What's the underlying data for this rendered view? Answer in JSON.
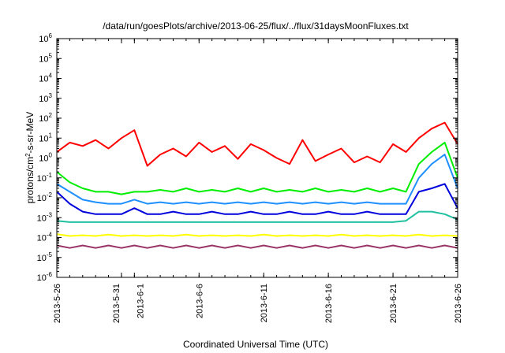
{
  "chart_data": {
    "type": "line",
    "title": "/data/run/goesPlots/archive/2013-06-25/flux/../flux/31daysMoonFluxes.txt",
    "xlabel": "Coordinated Universal Time (UTC)",
    "ylabel": "protons/cm2-s-sr-MeV",
    "ylabel_parts": [
      "protons/cm",
      "2",
      "-s-sr-MeV"
    ],
    "y_scale": "log",
    "ylim": [
      1e-06,
      1000000.0
    ],
    "yticks": [
      {
        "base": "10",
        "exp": "-6",
        "value": 1e-06
      },
      {
        "base": "10",
        "exp": "-5",
        "value": 1e-05
      },
      {
        "base": "10",
        "exp": "-4",
        "value": 0.0001
      },
      {
        "base": "10",
        "exp": "-3",
        "value": 0.001
      },
      {
        "base": "10",
        "exp": "-2",
        "value": 0.01
      },
      {
        "base": "10",
        "exp": "-1",
        "value": 0.1
      },
      {
        "base": "10",
        "exp": "0",
        "value": 1
      },
      {
        "base": "10",
        "exp": "1",
        "value": 10
      },
      {
        "base": "10",
        "exp": "2",
        "value": 100
      },
      {
        "base": "10",
        "exp": "3",
        "value": 1000
      },
      {
        "base": "10",
        "exp": "4",
        "value": 10000
      },
      {
        "base": "10",
        "exp": "5",
        "value": 100000
      },
      {
        "base": "10",
        "exp": "6",
        "value": 1000000
      }
    ],
    "xlim": [
      "2013-05-26",
      "2013-06-26"
    ],
    "xticks": [
      {
        "label": "2013-5-26",
        "date": "2013-05-26"
      },
      {
        "label": "2013-5-31",
        "date": "2013-05-31"
      },
      {
        "label": "2013-6-1",
        "date": "2013-06-01"
      },
      {
        "label": "2013-6-6",
        "date": "2013-06-06"
      },
      {
        "label": "2013-6-11",
        "date": "2013-06-11"
      },
      {
        "label": "2013-6-16",
        "date": "2013-06-16"
      },
      {
        "label": "2013-6-21",
        "date": "2013-06-21"
      },
      {
        "label": "2013-6-26",
        "date": "2013-06-26"
      }
    ],
    "grid": false,
    "series": [
      {
        "color": "#ff0000",
        "x": [
          "2013-05-26",
          "2013-05-27",
          "2013-05-28",
          "2013-05-29",
          "2013-05-30",
          "2013-05-31",
          "2013-06-01",
          "2013-06-02",
          "2013-06-03",
          "2013-06-04",
          "2013-06-05",
          "2013-06-06",
          "2013-06-07",
          "2013-06-08",
          "2013-06-09",
          "2013-06-10",
          "2013-06-11",
          "2013-06-12",
          "2013-06-13",
          "2013-06-14",
          "2013-06-15",
          "2013-06-16",
          "2013-06-17",
          "2013-06-18",
          "2013-06-19",
          "2013-06-20",
          "2013-06-21",
          "2013-06-22",
          "2013-06-23",
          "2013-06-24",
          "2013-06-25",
          "2013-06-26"
        ],
        "y": [
          2,
          6,
          4,
          8,
          3,
          10,
          25,
          0.4,
          1.5,
          3,
          1.2,
          6,
          2,
          4,
          0.9,
          5,
          2.5,
          1,
          0.5,
          8,
          0.7,
          1.5,
          3,
          0.6,
          1.2,
          0.6,
          5,
          2,
          10,
          30,
          60,
          5
        ]
      },
      {
        "color": "#00ee00",
        "x": [
          "2013-05-26",
          "2013-05-27",
          "2013-05-28",
          "2013-05-29",
          "2013-05-30",
          "2013-05-31",
          "2013-06-01",
          "2013-06-02",
          "2013-06-03",
          "2013-06-04",
          "2013-06-05",
          "2013-06-06",
          "2013-06-07",
          "2013-06-08",
          "2013-06-09",
          "2013-06-10",
          "2013-06-11",
          "2013-06-12",
          "2013-06-13",
          "2013-06-14",
          "2013-06-15",
          "2013-06-16",
          "2013-06-17",
          "2013-06-18",
          "2013-06-19",
          "2013-06-20",
          "2013-06-21",
          "2013-06-22",
          "2013-06-23",
          "2013-06-24",
          "2013-06-25",
          "2013-06-26"
        ],
        "y": [
          0.2,
          0.06,
          0.03,
          0.02,
          0.02,
          0.015,
          0.02,
          0.02,
          0.025,
          0.02,
          0.03,
          0.02,
          0.025,
          0.02,
          0.03,
          0.02,
          0.03,
          0.02,
          0.025,
          0.02,
          0.03,
          0.02,
          0.025,
          0.02,
          0.03,
          0.02,
          0.03,
          0.02,
          0.5,
          2,
          6,
          0.1
        ]
      },
      {
        "color": "#1e90ff",
        "x": [
          "2013-05-26",
          "2013-05-27",
          "2013-05-28",
          "2013-05-29",
          "2013-05-30",
          "2013-05-31",
          "2013-06-01",
          "2013-06-02",
          "2013-06-03",
          "2013-06-04",
          "2013-06-05",
          "2013-06-06",
          "2013-06-07",
          "2013-06-08",
          "2013-06-09",
          "2013-06-10",
          "2013-06-11",
          "2013-06-12",
          "2013-06-13",
          "2013-06-14",
          "2013-06-15",
          "2013-06-16",
          "2013-06-17",
          "2013-06-18",
          "2013-06-19",
          "2013-06-20",
          "2013-06-21",
          "2013-06-22",
          "2013-06-23",
          "2013-06-24",
          "2013-06-25",
          "2013-06-26"
        ],
        "y": [
          0.05,
          0.02,
          0.008,
          0.006,
          0.005,
          0.005,
          0.008,
          0.005,
          0.006,
          0.005,
          0.006,
          0.005,
          0.006,
          0.005,
          0.006,
          0.005,
          0.006,
          0.005,
          0.006,
          0.005,
          0.006,
          0.005,
          0.006,
          0.005,
          0.006,
          0.005,
          0.005,
          0.005,
          0.1,
          0.5,
          1.5,
          0.03
        ]
      },
      {
        "color": "#0000dd",
        "x": [
          "2013-05-26",
          "2013-05-27",
          "2013-05-28",
          "2013-05-29",
          "2013-05-30",
          "2013-05-31",
          "2013-06-01",
          "2013-06-02",
          "2013-06-03",
          "2013-06-04",
          "2013-06-05",
          "2013-06-06",
          "2013-06-07",
          "2013-06-08",
          "2013-06-09",
          "2013-06-10",
          "2013-06-11",
          "2013-06-12",
          "2013-06-13",
          "2013-06-14",
          "2013-06-15",
          "2013-06-16",
          "2013-06-17",
          "2013-06-18",
          "2013-06-19",
          "2013-06-20",
          "2013-06-21",
          "2013-06-22",
          "2013-06-23",
          "2013-06-24",
          "2013-06-25",
          "2013-06-26"
        ],
        "y": [
          0.02,
          0.005,
          0.002,
          0.0015,
          0.0015,
          0.0015,
          0.003,
          0.0015,
          0.0015,
          0.002,
          0.0015,
          0.0015,
          0.002,
          0.0015,
          0.0015,
          0.002,
          0.0015,
          0.0015,
          0.002,
          0.0015,
          0.0015,
          0.002,
          0.0015,
          0.0015,
          0.002,
          0.0015,
          0.0015,
          0.0015,
          0.02,
          0.03,
          0.05,
          0.003
        ]
      },
      {
        "color": "#20c0a0",
        "x": [
          "2013-05-26",
          "2013-05-27",
          "2013-05-28",
          "2013-05-29",
          "2013-05-30",
          "2013-05-31",
          "2013-06-01",
          "2013-06-02",
          "2013-06-03",
          "2013-06-04",
          "2013-06-05",
          "2013-06-06",
          "2013-06-07",
          "2013-06-08",
          "2013-06-09",
          "2013-06-10",
          "2013-06-11",
          "2013-06-12",
          "2013-06-13",
          "2013-06-14",
          "2013-06-15",
          "2013-06-16",
          "2013-06-17",
          "2013-06-18",
          "2013-06-19",
          "2013-06-20",
          "2013-06-21",
          "2013-06-22",
          "2013-06-23",
          "2013-06-24",
          "2013-06-25",
          "2013-06-26"
        ],
        "y": [
          0.0007,
          0.0006,
          0.0006,
          0.0006,
          0.0006,
          0.0006,
          0.0006,
          0.0006,
          0.0006,
          0.0006,
          0.0006,
          0.0006,
          0.0006,
          0.0006,
          0.0006,
          0.0006,
          0.0006,
          0.0006,
          0.0006,
          0.0006,
          0.0006,
          0.0006,
          0.0006,
          0.0006,
          0.0006,
          0.0006,
          0.0006,
          0.0007,
          0.002,
          0.002,
          0.0015,
          0.0008
        ]
      },
      {
        "color": "#ffff00",
        "x": [
          "2013-05-26",
          "2013-05-27",
          "2013-05-28",
          "2013-05-29",
          "2013-05-30",
          "2013-05-31",
          "2013-06-01",
          "2013-06-02",
          "2013-06-03",
          "2013-06-04",
          "2013-06-05",
          "2013-06-06",
          "2013-06-07",
          "2013-06-08",
          "2013-06-09",
          "2013-06-10",
          "2013-06-11",
          "2013-06-12",
          "2013-06-13",
          "2013-06-14",
          "2013-06-15",
          "2013-06-16",
          "2013-06-17",
          "2013-06-18",
          "2013-06-19",
          "2013-06-20",
          "2013-06-21",
          "2013-06-22",
          "2013-06-23",
          "2013-06-24",
          "2013-06-25",
          "2013-06-26"
        ],
        "y": [
          0.00015,
          0.00012,
          0.00013,
          0.00012,
          0.00014,
          0.00012,
          0.00013,
          0.00012,
          0.00013,
          0.00012,
          0.00014,
          0.00012,
          0.00013,
          0.00012,
          0.00013,
          0.00012,
          0.00014,
          0.00012,
          0.00013,
          0.00012,
          0.00013,
          0.00012,
          0.00014,
          0.00012,
          0.00013,
          0.00012,
          0.00013,
          0.00012,
          0.00014,
          0.00012,
          0.00013,
          0.00012
        ]
      },
      {
        "color": "#993366",
        "x": [
          "2013-05-26",
          "2013-05-27",
          "2013-05-28",
          "2013-05-29",
          "2013-05-30",
          "2013-05-31",
          "2013-06-01",
          "2013-06-02",
          "2013-06-03",
          "2013-06-04",
          "2013-06-05",
          "2013-06-06",
          "2013-06-07",
          "2013-06-08",
          "2013-06-09",
          "2013-06-10",
          "2013-06-11",
          "2013-06-12",
          "2013-06-13",
          "2013-06-14",
          "2013-06-15",
          "2013-06-16",
          "2013-06-17",
          "2013-06-18",
          "2013-06-19",
          "2013-06-20",
          "2013-06-21",
          "2013-06-22",
          "2013-06-23",
          "2013-06-24",
          "2013-06-25",
          "2013-06-26"
        ],
        "y": [
          4e-05,
          3e-05,
          4e-05,
          3e-05,
          4e-05,
          3e-05,
          4e-05,
          3e-05,
          4e-05,
          3e-05,
          4e-05,
          3e-05,
          4e-05,
          3e-05,
          4e-05,
          3e-05,
          4e-05,
          3e-05,
          4e-05,
          3e-05,
          4e-05,
          3e-05,
          4e-05,
          3e-05,
          4e-05,
          3e-05,
          4e-05,
          3e-05,
          4e-05,
          3e-05,
          4e-05,
          3e-05
        ]
      }
    ]
  }
}
